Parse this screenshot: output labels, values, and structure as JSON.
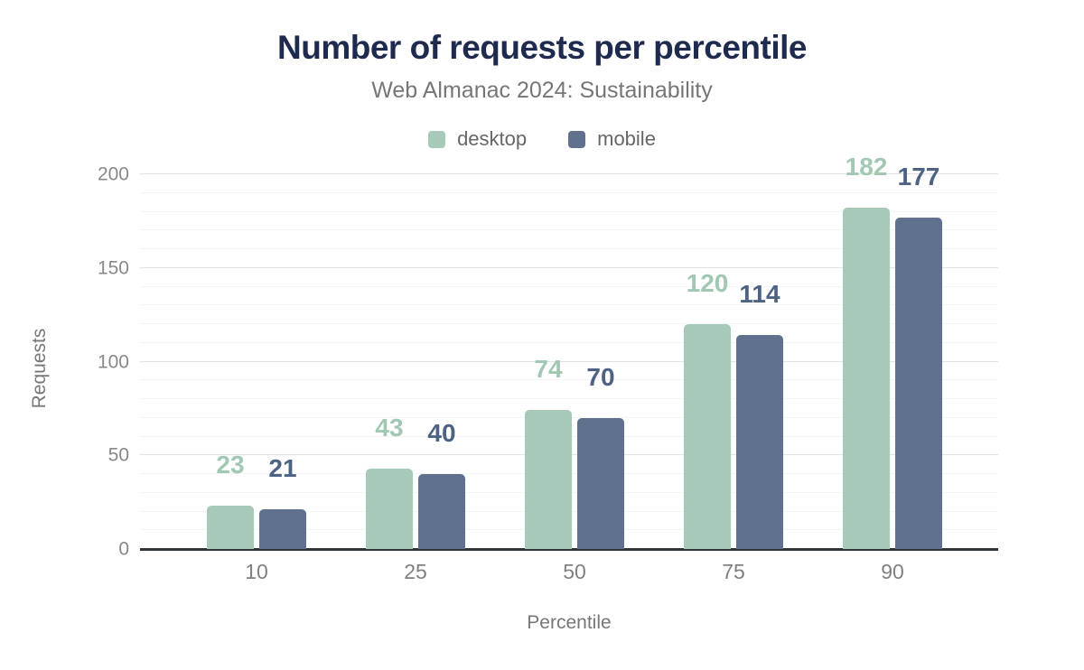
{
  "header": {
    "title": "Number of requests per percentile",
    "subtitle": "Web Almanac 2024: Sustainability"
  },
  "legend": [
    {
      "label": "desktop",
      "color": "#a7cab8"
    },
    {
      "label": "mobile",
      "color": "#5f718c"
    }
  ],
  "axes": {
    "x_title": "Percentile",
    "y_title": "Requests"
  },
  "colors": {
    "title": "#1e2b4e",
    "subtitle": "#767676",
    "desktop_bar": "#a7cab8",
    "mobile_bar": "#5f718c",
    "desktop_label": "#a2c8b3",
    "mobile_label": "#4e6384",
    "axis_line": "#333639",
    "major_grid": "#e1e1e1",
    "minor_grid": "#f4f4f4",
    "tick_text": "#888888"
  },
  "chart_data": {
    "type": "bar",
    "title": "Number of requests per percentile",
    "subtitle": "Web Almanac 2024: Sustainability",
    "categories": [
      "10",
      "25",
      "50",
      "75",
      "90"
    ],
    "series": [
      {
        "name": "desktop",
        "color": "#a7cab8",
        "label_color": "#a2c8b3",
        "values": [
          23,
          43,
          74,
          120,
          182
        ]
      },
      {
        "name": "mobile",
        "color": "#5f718c",
        "label_color": "#4e6384",
        "values": [
          21,
          40,
          70,
          114,
          177
        ]
      }
    ],
    "xlabel": "Percentile",
    "ylabel": "Requests",
    "ylim": [
      0,
      200
    ],
    "yticks": [
      0,
      50,
      100,
      150,
      200
    ],
    "minor_gridline_step": 10,
    "grid": true,
    "legend_position": "top",
    "data_labels": true
  }
}
